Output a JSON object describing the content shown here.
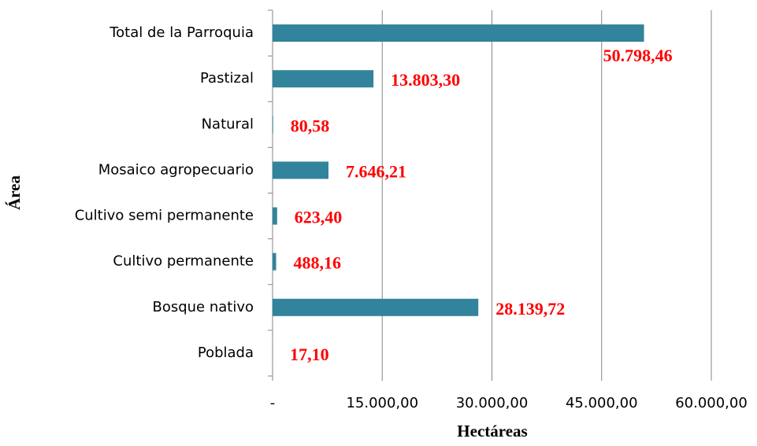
{
  "chart_data": {
    "type": "bar",
    "orientation": "horizontal",
    "x_label": "Hectáreas",
    "y_label": "Área",
    "categories": [
      "Total de la Parroquia",
      "Pastizal",
      "Natural",
      "Mosaico agropecuario",
      "Cultivo semi permanente",
      "Cultivo permanente",
      "Bosque nativo",
      "Poblada"
    ],
    "values": [
      50798.46,
      13803.3,
      80.58,
      7646.21,
      623.4,
      488.16,
      28139.72,
      17.1
    ],
    "value_labels": [
      "50.798,46",
      "13.803,30",
      "80,58",
      "7.646,21",
      "623,40",
      "488,16",
      "28.139,72",
      "17,10"
    ],
    "color": "#31849b",
    "xlim": [
      0,
      60000
    ],
    "xticks": [
      {
        "value": 0,
        "label": "-"
      },
      {
        "value": 15000,
        "label": "15.000,00"
      },
      {
        "value": 30000,
        "label": "30.000,00"
      },
      {
        "value": 45000,
        "label": "45.000,00"
      },
      {
        "value": 60000,
        "label": "60.000,00"
      }
    ],
    "grid": true
  }
}
